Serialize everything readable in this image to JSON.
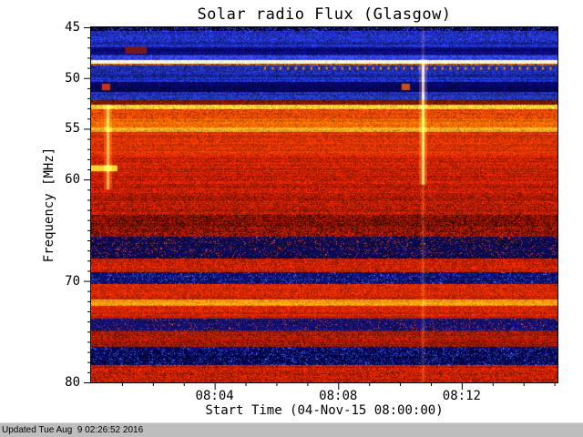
{
  "title": "Solar radio Flux (Glasgow)",
  "footer": {
    "updated_text": "Updated Tue Aug  9 02:26:52 2016"
  },
  "chart_data": {
    "type": "heatmap",
    "subtype": "radio-spectrogram",
    "title": "Solar radio Flux (Glasgow)",
    "xlabel": "Start Time (04-Nov-15 08:00:00)",
    "ylabel": "Frequency [MHz]",
    "x_start_time": "08:00",
    "x_range_minutes": [
      0,
      15.1
    ],
    "x_major_ticks": [
      {
        "label": "08:04",
        "minute": 4
      },
      {
        "label": "08:08",
        "minute": 8
      },
      {
        "label": "08:12",
        "minute": 12
      }
    ],
    "x_minor_tick_every_min": 1,
    "y_range": [
      45,
      80
    ],
    "y_axis_inverted": true,
    "y_major_ticks": [
      45,
      50,
      55,
      60,
      70,
      80
    ],
    "y_minor_tick_every_mhz": 1,
    "grid": false,
    "legend": "none",
    "colormap": "blue = low flux, red = high flux, yellow/white = strongest emission",
    "bands": [
      {
        "f": [
          45.0,
          45.4
        ],
        "color": "#050530",
        "noise": 0.6,
        "stripe": 0.5,
        "speckle": "#3344ee",
        "speckle_p": 0.25
      },
      {
        "f": [
          45.4,
          46.3
        ],
        "color": "#2233cc",
        "noise": 0.5,
        "stripe": 0.6
      },
      {
        "f": [
          46.3,
          47.0
        ],
        "color": "#1b2bb4",
        "noise": 0.5,
        "stripe": 0.5
      },
      {
        "f": [
          47.0,
          47.7
        ],
        "color": "#0a0a78",
        "noise": 0.5,
        "stripe": 0.4
      },
      {
        "f": [
          47.7,
          48.2
        ],
        "color": "#2a3ad0",
        "noise": 0.45,
        "stripe": 0.5
      },
      {
        "f": [
          48.2,
          48.55
        ],
        "color": "#ffffe8",
        "noise": 0.1,
        "stripe": 0.1
      },
      {
        "f": [
          48.55,
          48.8
        ],
        "color": "#cc5500",
        "noise": 0.5,
        "stripe": 0.3
      },
      {
        "f": [
          48.8,
          49.5
        ],
        "color": "#2233bb",
        "noise": 0.5,
        "stripe": 0.5
      },
      {
        "f": [
          49.5,
          50.4
        ],
        "color": "#1a2ab0",
        "noise": 0.5,
        "stripe": 0.5
      },
      {
        "f": [
          50.4,
          51.4
        ],
        "color": "#060660",
        "noise": 0.5,
        "stripe": 0.4
      },
      {
        "f": [
          51.4,
          52.2
        ],
        "color": "#2233c0",
        "noise": 0.5,
        "stripe": 0.5
      },
      {
        "f": [
          52.2,
          52.6
        ],
        "color": "#7a1505",
        "noise": 0.4,
        "stripe": 0.3
      },
      {
        "f": [
          52.6,
          53.1
        ],
        "color": "#ffcc33",
        "noise": 0.25,
        "stripe": 0.2
      },
      {
        "f": [
          53.1,
          54.0
        ],
        "color": "#e64400",
        "noise": 0.35,
        "stripe": 0.3
      },
      {
        "f": [
          54.0,
          54.9
        ],
        "color": "#ff6600",
        "noise": 0.3,
        "stripe": 0.25
      },
      {
        "f": [
          54.9,
          55.3
        ],
        "color": "#ffaa22",
        "noise": 0.25,
        "stripe": 0.2
      },
      {
        "f": [
          55.3,
          57.6
        ],
        "color": "#e03300",
        "noise": 0.3,
        "stripe": 0.3
      },
      {
        "f": [
          57.6,
          59.5
        ],
        "color": "#cc2200",
        "noise": 0.35,
        "stripe": 0.3
      },
      {
        "f": [
          59.5,
          61.5
        ],
        "color": "#c41e00",
        "noise": 0.4,
        "stripe": 0.3
      },
      {
        "f": [
          61.5,
          63.5
        ],
        "color": "#b81c00",
        "noise": 0.45,
        "stripe": 0.35
      },
      {
        "f": [
          63.5,
          65.6
        ],
        "color": "#8f1400",
        "noise": 0.55,
        "stripe": 0.4,
        "speckle": "#2a0400",
        "speckle_p": 0.15
      },
      {
        "f": [
          65.6,
          67.8
        ],
        "color": "#0a0a50",
        "noise": 0.6,
        "stripe": 0.5,
        "speckle": "#cc3311",
        "speckle_p": 0.1
      },
      {
        "f": [
          67.8,
          69.1
        ],
        "color": "#c42000",
        "noise": 0.4,
        "stripe": 0.3
      },
      {
        "f": [
          69.1,
          70.3
        ],
        "color": "#0d0d66",
        "noise": 0.55,
        "stripe": 0.45,
        "speckle": "#3355ee",
        "speckle_p": 0.15
      },
      {
        "f": [
          70.3,
          71.8
        ],
        "color": "#cc2600",
        "noise": 0.35,
        "stripe": 0.3
      },
      {
        "f": [
          71.8,
          72.5
        ],
        "color": "#ff9911",
        "noise": 0.25,
        "stripe": 0.2
      },
      {
        "f": [
          72.5,
          73.7
        ],
        "color": "#c82300",
        "noise": 0.35,
        "stripe": 0.3
      },
      {
        "f": [
          73.7,
          74.9
        ],
        "color": "#101070",
        "noise": 0.55,
        "stripe": 0.45,
        "speckle": "#cc3322",
        "speckle_p": 0.08
      },
      {
        "f": [
          74.9,
          76.5
        ],
        "color": "#a81a00",
        "noise": 0.45,
        "stripe": 0.35
      },
      {
        "f": [
          76.5,
          78.3
        ],
        "color": "#060650",
        "noise": 0.6,
        "stripe": 0.5,
        "speckle": "#2b4bee",
        "speckle_p": 0.18
      },
      {
        "f": [
          78.3,
          80.0
        ],
        "color": "#c02000",
        "noise": 0.45,
        "stripe": 0.35
      }
    ],
    "features": [
      {
        "type": "patch",
        "t": [
          1.1,
          1.8
        ],
        "f": [
          46.9,
          47.6
        ],
        "color": "#8a1a10",
        "alpha": 0.85,
        "desc": "dark red blotch near 47 MHz just after start"
      },
      {
        "type": "patch",
        "t": [
          0.35,
          0.62
        ],
        "f": [
          50.55,
          51.2
        ],
        "color": "#dd3322",
        "alpha": 0.9,
        "desc": "red speck near 51 MHz at ~08:00"
      },
      {
        "type": "patch",
        "t": [
          10.05,
          10.32
        ],
        "f": [
          50.55,
          51.2
        ],
        "color": "#dd5522",
        "alpha": 0.9,
        "desc": "red speck near 51 MHz at ~08:10"
      },
      {
        "type": "patch",
        "t": [
          0.0,
          0.85
        ],
        "f": [
          58.6,
          59.2
        ],
        "color": "#ffdd33",
        "alpha": 0.95,
        "desc": "bright yellow segment near 59 MHz at start"
      },
      {
        "type": "vstreak",
        "t": 0.55,
        "f": [
          52.6,
          61.0
        ],
        "width": 3,
        "alpha": 0.5,
        "desc": "vertical brightening at ~08:00:30"
      },
      {
        "type": "vstreak",
        "t": 10.75,
        "f": [
          48.2,
          60.5
        ],
        "width": 3,
        "alpha": 0.55,
        "desc": "vertical brightening at ~08:10:45"
      },
      {
        "type": "vstreak",
        "t": 10.75,
        "f": [
          45.0,
          80.0
        ],
        "width": 2,
        "alpha": 0.15,
        "desc": "faint full-band vertical line at ~08:10:45"
      },
      {
        "type": "dots",
        "t": [
          5.6,
          15.1
        ],
        "f": 49.0,
        "period_min": 0.25,
        "color": "#ff8800",
        "desc": "periodic orange dashes near 49 MHz"
      }
    ]
  }
}
